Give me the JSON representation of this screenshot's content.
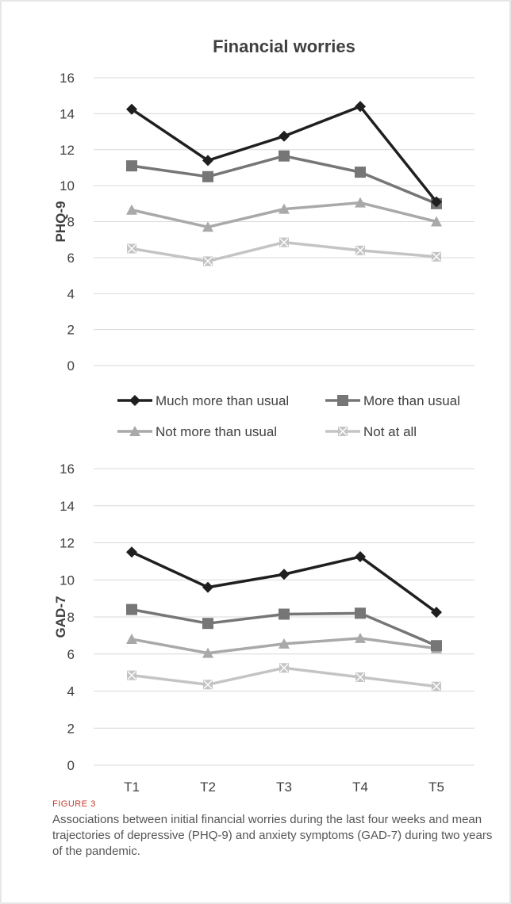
{
  "chart_data": [
    {
      "type": "line",
      "title": "Financial worries",
      "ylabel": "PHQ-9",
      "xlabel": "",
      "ylim": [
        0,
        16
      ],
      "yticks": [
        "0",
        "2",
        "4",
        "6",
        "8",
        "10",
        "12",
        "14",
        "16"
      ],
      "categories": [
        "T1",
        "T2",
        "T3",
        "T4",
        "T5"
      ],
      "show_x_tick_labels": false,
      "grid": true,
      "series": [
        {
          "name": "Much more than usual",
          "values": [
            14.25,
            11.4,
            12.75,
            14.4,
            9.1
          ]
        },
        {
          "name": "More than usual",
          "values": [
            11.1,
            10.5,
            11.65,
            10.75,
            9.0
          ]
        },
        {
          "name": "Not more than usual",
          "values": [
            8.65,
            7.7,
            8.7,
            9.05,
            8.0
          ]
        },
        {
          "name": "Not at all",
          "values": [
            6.5,
            5.8,
            6.85,
            6.4,
            6.05
          ]
        }
      ]
    },
    {
      "type": "line",
      "title": "",
      "ylabel": "GAD-7",
      "xlabel": "",
      "ylim": [
        0,
        16
      ],
      "yticks": [
        "0",
        "2",
        "4",
        "6",
        "8",
        "10",
        "12",
        "14",
        "16"
      ],
      "categories": [
        "T1",
        "T2",
        "T3",
        "T4",
        "T5"
      ],
      "show_x_tick_labels": true,
      "grid": true,
      "series": [
        {
          "name": "Much more than usual",
          "values": [
            11.5,
            9.6,
            10.3,
            11.25,
            8.25
          ]
        },
        {
          "name": "More than usual",
          "values": [
            8.4,
            7.65,
            8.15,
            8.2,
            6.45
          ]
        },
        {
          "name": "Not more than usual",
          "values": [
            6.8,
            6.05,
            6.55,
            6.85,
            6.3
          ]
        },
        {
          "name": "Not at all",
          "values": [
            4.85,
            4.35,
            5.25,
            4.75,
            4.25
          ]
        }
      ]
    }
  ],
  "legend": {
    "placement": "between-panels",
    "entries": [
      {
        "label": "Much more than usual",
        "color": "#1f1f1f",
        "marker": "diamond"
      },
      {
        "label": "More than usual",
        "color": "#767676",
        "marker": "square"
      },
      {
        "label": "Not more than usual",
        "color": "#a9a9a9",
        "marker": "triangle"
      },
      {
        "label": "Not at all",
        "color": "#c4c4c4",
        "marker": "x-square"
      }
    ]
  },
  "colors": {
    "grid": "#d9d9d9",
    "axis_text": "#404040",
    "frame": "#cfcfcf",
    "figure_label": "#c0392b",
    "caption_text": "#555555"
  },
  "caption": {
    "label": "FIGURE 3",
    "text": "Associations between initial financial worries during the last four weeks and mean trajectories of depressive (PHQ-9) and anxiety symptoms (GAD-7) during two years of the pandemic."
  }
}
